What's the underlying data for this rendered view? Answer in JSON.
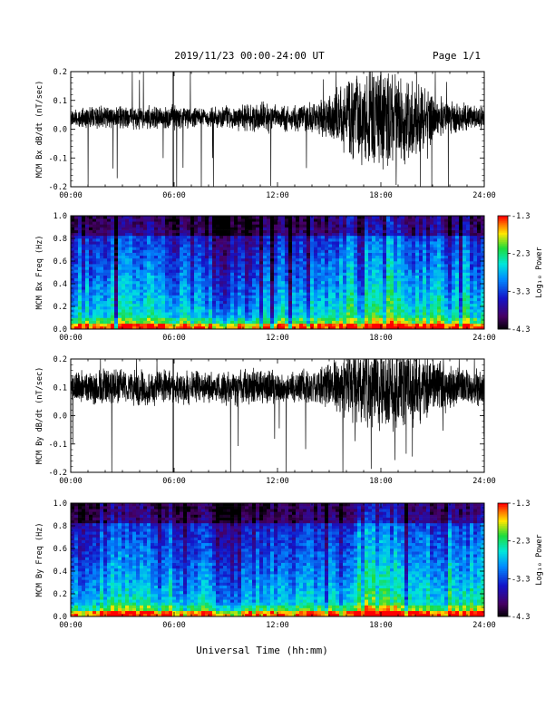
{
  "header": {
    "title": "2019/11/23  00:00-24:00 UT",
    "page": "Page 1/1"
  },
  "xlabel": "Universal Time (hh:mm)",
  "x_ticks": [
    "00:00",
    "06:00",
    "12:00",
    "18:00",
    "24:00"
  ],
  "colorbar": {
    "label": "Log₁₀ Power",
    "ticks": [
      "-1.3",
      "-2.3",
      "-3.3",
      "-4.3"
    ]
  },
  "chart_data": [
    {
      "type": "line",
      "ylabel": "MCM Bx dB/dt (nT/sec)",
      "xlim": [
        0,
        24
      ],
      "ylim": [
        -0.2,
        0.2
      ],
      "y_ticks": [
        "0.2",
        "0.1",
        "0.0",
        "-0.1",
        "-0.2"
      ],
      "series": [
        {
          "x": [
            0,
            2,
            4,
            5.9,
            6,
            8,
            9.5,
            10.5,
            11.5,
            12,
            14,
            15,
            16,
            17,
            18,
            19,
            20,
            21,
            22,
            24
          ],
          "baseline": [
            0.04,
            0.04,
            0.04,
            0.04,
            0.04,
            0.04,
            0.04,
            0.04,
            0.04,
            0.04,
            0.04,
            0.04,
            0.04,
            0.04,
            0.04,
            0.04,
            0.04,
            0.04,
            0.04,
            0.04
          ],
          "amplitude": [
            0.03,
            0.04,
            0.035,
            0.04,
            0.04,
            0.03,
            0.045,
            0.05,
            0.05,
            0.04,
            0.05,
            0.07,
            0.12,
            0.15,
            0.17,
            0.16,
            0.12,
            0.08,
            0.05,
            0.04
          ]
        }
      ]
    },
    {
      "type": "heatmap",
      "ylabel": "MCM Bx Freq (Hz)",
      "xlim": [
        0,
        24
      ],
      "ylim": [
        0,
        1.0
      ],
      "y_ticks": [
        "1.0",
        "0.8",
        "0.6",
        "0.4",
        "0.2",
        "0.0"
      ],
      "clim": [
        -4.3,
        -1.3
      ]
    },
    {
      "type": "line",
      "ylabel": "MCM By dB/dt (nT/sec)",
      "xlim": [
        0,
        24
      ],
      "ylim": [
        -0.2,
        0.2
      ],
      "y_ticks": [
        "0.2",
        "0.1",
        "0.0",
        "-0.1",
        "-0.2"
      ],
      "series": [
        {
          "x": [
            0,
            2,
            4,
            5.9,
            6,
            8,
            9.5,
            10.5,
            11.5,
            12,
            14,
            15,
            16,
            17,
            18,
            19,
            20,
            21,
            22,
            24
          ],
          "baseline": [
            0.1,
            0.1,
            0.1,
            0.1,
            0.1,
            0.1,
            0.1,
            0.1,
            0.1,
            0.1,
            0.1,
            0.1,
            0.1,
            0.1,
            0.1,
            0.1,
            0.1,
            0.1,
            0.1,
            0.1
          ],
          "amplitude": [
            0.05,
            0.06,
            0.06,
            0.06,
            0.06,
            0.05,
            0.06,
            0.06,
            0.06,
            0.05,
            0.06,
            0.08,
            0.11,
            0.13,
            0.14,
            0.14,
            0.12,
            0.1,
            0.07,
            0.06
          ]
        }
      ]
    },
    {
      "type": "heatmap",
      "ylabel": "MCM By Freq (Hz)",
      "xlim": [
        0,
        24
      ],
      "ylim": [
        0,
        1.0
      ],
      "y_ticks": [
        "1.0",
        "0.8",
        "0.6",
        "0.4",
        "0.2",
        "0.0"
      ],
      "clim": [
        -4.3,
        -1.3
      ]
    }
  ]
}
